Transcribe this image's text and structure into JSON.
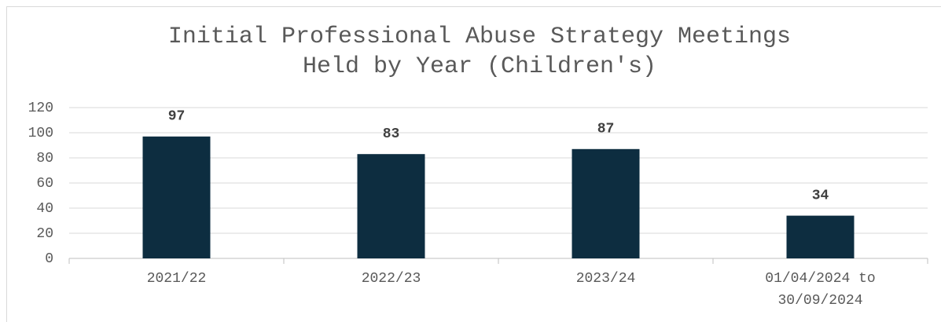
{
  "chart_data": {
    "type": "bar",
    "title": "Initial Professional Abuse Strategy Meetings Held by Year (Children's)",
    "categories": [
      "2021/22",
      "2022/23",
      "2023/24",
      "01/04/2024 to 30/09/2024"
    ],
    "values": [
      97,
      83,
      87,
      34
    ],
    "color": "#0d2d40",
    "ylim": [
      0,
      120
    ],
    "yticks": [
      0,
      20,
      40,
      60,
      80,
      100,
      120
    ],
    "grid": true
  }
}
